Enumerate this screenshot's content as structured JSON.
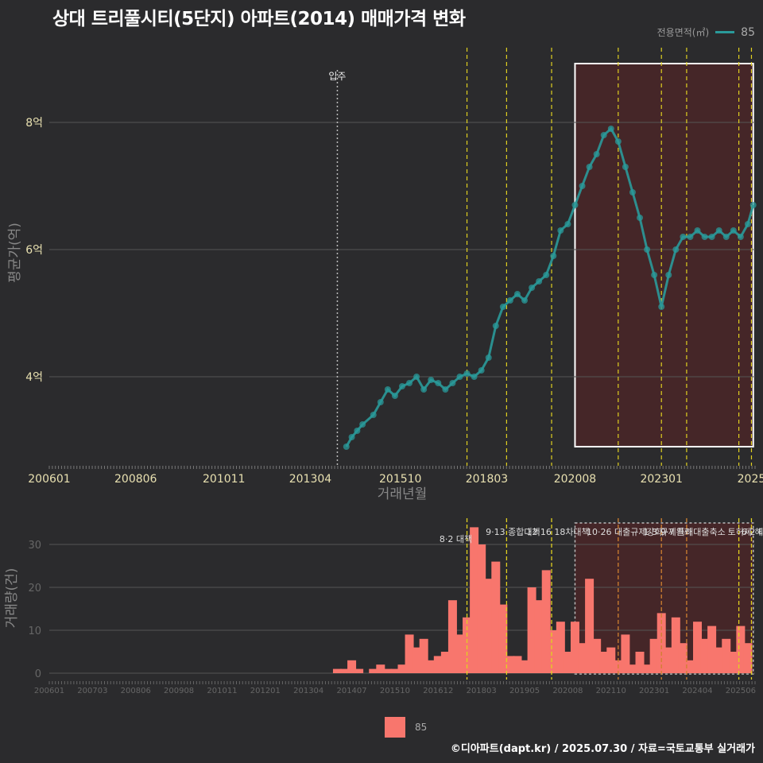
{
  "title": "상대 트리풀시티(5단지) 아파트(2014) 매매가격 변화",
  "legend": {
    "label": "전용면적(㎡)",
    "value": "85",
    "bar_label": "85"
  },
  "footer": "©디아파트(dapt.kr) / 2025.07.30 / 자료=국토교통부 실거래가",
  "colors": {
    "line": "#2a9a9a",
    "bar": "#f8766d",
    "policy": "#e0d020",
    "shade": "#4a2628"
  },
  "chart_data": [
    {
      "type": "scatter",
      "title": "평균가 추이",
      "xlabel": "거래년월",
      "ylabel": "평균가(억)",
      "x_ticks": [
        "200601",
        "200806",
        "201011",
        "201304",
        "201510",
        "201803",
        "202008",
        "202301",
        "2025"
      ],
      "y_ticks": [
        "4억",
        "6억",
        "8억"
      ],
      "ylim": [
        2.6,
        9.3
      ],
      "xlim": [
        2006.0,
        2025.6
      ],
      "move_in": {
        "label": "입주",
        "x": 2014.0
      },
      "policy_lines_x": [
        2017.6,
        2018.7,
        2019.95,
        2021.8,
        2023.0,
        2023.7,
        2025.15,
        2025.5
      ],
      "highlight_range": [
        2020.6,
        2025.55
      ],
      "series": [
        {
          "name": "85",
          "x": [
            2014.25,
            2014.4,
            2014.55,
            2014.7,
            2015.0,
            2015.2,
            2015.4,
            2015.6,
            2015.8,
            2016.0,
            2016.2,
            2016.4,
            2016.6,
            2016.8,
            2017.0,
            2017.2,
            2017.4,
            2017.6,
            2017.8,
            2018.0,
            2018.2,
            2018.4,
            2018.6,
            2018.8,
            2019.0,
            2019.2,
            2019.4,
            2019.6,
            2019.8,
            2020.0,
            2020.2,
            2020.4,
            2020.6,
            2020.8,
            2021.0,
            2021.2,
            2021.4,
            2021.6,
            2021.8,
            2022.0,
            2022.2,
            2022.4,
            2022.6,
            2022.8,
            2023.0,
            2023.2,
            2023.4,
            2023.6,
            2023.8,
            2024.0,
            2024.2,
            2024.4,
            2024.6,
            2024.8,
            2025.0,
            2025.2,
            2025.4,
            2025.55
          ],
          "y": [
            2.9,
            3.05,
            3.15,
            3.25,
            3.4,
            3.6,
            3.8,
            3.7,
            3.85,
            3.9,
            4.0,
            3.8,
            3.95,
            3.9,
            3.8,
            3.9,
            4.0,
            4.05,
            4.0,
            4.1,
            4.3,
            4.8,
            5.1,
            5.2,
            5.3,
            5.2,
            5.4,
            5.5,
            5.6,
            5.9,
            6.3,
            6.4,
            6.7,
            7.0,
            7.3,
            7.5,
            7.8,
            7.9,
            7.7,
            7.3,
            6.9,
            6.5,
            6.0,
            5.6,
            5.1,
            5.6,
            6.0,
            6.2,
            6.2,
            6.3,
            6.2,
            6.2,
            6.3,
            6.2,
            6.3,
            6.2,
            6.4,
            6.7
          ]
        }
      ]
    },
    {
      "type": "bar",
      "title": "거래량",
      "xlabel": "",
      "ylabel": "거래량(건)",
      "x_ticks": [
        "200601",
        "200703",
        "200806",
        "200908",
        "201011",
        "201201",
        "201304",
        "201407",
        "201510",
        "201612",
        "201803",
        "201905",
        "202008",
        "202110",
        "202301",
        "202404",
        "202506"
      ],
      "y_ticks": [
        "0",
        "10",
        "20",
        "30"
      ],
      "ylim": [
        0,
        35
      ],
      "xlim": [
        2006.0,
        2025.6
      ],
      "policies": [
        {
          "label": "8·2 대책",
          "x": 2017.6
        },
        {
          "label": "9·13 종합대책",
          "x": 2018.7
        },
        {
          "label": "12·16 18차대책",
          "x": 2019.95
        },
        {
          "label": "10·26 대출규제강화",
          "x": 2021.8
        },
        {
          "label": "1·3 규제완화",
          "x": 2023.0
        },
        {
          "label": "9·7 특례대출축소",
          "x": 2023.7
        },
        {
          "label": "토허제 해",
          "x": 2025.15
        },
        {
          "label": "6·2 대출",
          "x": 2025.5
        }
      ],
      "highlight_range": [
        2020.6,
        2025.55
      ],
      "series": [
        {
          "name": "85",
          "x": [
            2014.0,
            2014.2,
            2014.4,
            2014.6,
            2015.0,
            2015.2,
            2015.4,
            2015.6,
            2015.8,
            2016.0,
            2016.2,
            2016.4,
            2016.6,
            2016.8,
            2017.0,
            2017.2,
            2017.4,
            2017.6,
            2017.8,
            2018.0,
            2018.2,
            2018.4,
            2018.6,
            2018.8,
            2019.0,
            2019.2,
            2019.4,
            2019.6,
            2019.8,
            2020.0,
            2020.2,
            2020.4,
            2020.6,
            2020.8,
            2021.0,
            2021.2,
            2021.4,
            2021.6,
            2021.8,
            2022.0,
            2022.2,
            2022.4,
            2022.6,
            2022.8,
            2023.0,
            2023.2,
            2023.4,
            2023.6,
            2023.8,
            2024.0,
            2024.2,
            2024.4,
            2024.6,
            2024.8,
            2025.0,
            2025.2,
            2025.4
          ],
          "values": [
            1,
            1,
            3,
            1,
            1,
            2,
            1,
            1,
            2,
            9,
            6,
            8,
            3,
            4,
            5,
            17,
            9,
            13,
            34,
            30,
            22,
            26,
            16,
            4,
            4,
            3,
            20,
            17,
            24,
            10,
            12,
            5,
            12,
            7,
            22,
            8,
            5,
            6,
            3,
            9,
            2,
            5,
            2,
            8,
            14,
            6,
            13,
            7,
            3,
            12,
            8,
            11,
            6,
            8,
            5,
            11,
            7
          ]
        }
      ]
    }
  ]
}
